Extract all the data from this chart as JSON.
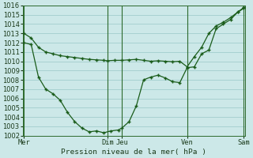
{
  "xlabel": "Pression niveau de la mer( hPa )",
  "ylim": [
    1002,
    1016
  ],
  "background_color": "#cce8e8",
  "grid_color": "#99c8c8",
  "line_color": "#1a5c1a",
  "vline_color": "#2d6a2d",
  "xlim": [
    0,
    9.2
  ],
  "vline_positions": [
    0.05,
    3.5,
    4.1,
    6.8,
    9.15
  ],
  "xtick_positions": [
    0.05,
    3.5,
    4.1,
    6.8,
    9.15
  ],
  "xtick_labels": [
    "Mer",
    "Dim",
    "Jeu",
    "Ven",
    "Sam"
  ],
  "series1_x": [
    0.05,
    0.35,
    0.65,
    0.95,
    1.25,
    1.55,
    1.85,
    2.15,
    2.45,
    2.75,
    3.05,
    3.35,
    3.5,
    3.8,
    4.1,
    4.4,
    4.7,
    5.0,
    5.3,
    5.6,
    5.9,
    6.2,
    6.5,
    6.8,
    7.1,
    7.4,
    7.7,
    8.0,
    8.3,
    8.6,
    8.9,
    9.15
  ],
  "series1_y": [
    1013.0,
    1012.5,
    1011.5,
    1011.0,
    1010.8,
    1010.6,
    1010.5,
    1010.4,
    1010.3,
    1010.2,
    1010.15,
    1010.1,
    1010.05,
    1010.1,
    1010.1,
    1010.15,
    1010.2,
    1010.1,
    1010.0,
    1010.05,
    1010.0,
    1009.95,
    1010.0,
    1009.4,
    1010.5,
    1011.5,
    1013.0,
    1013.8,
    1014.2,
    1014.7,
    1015.3,
    1015.8
  ],
  "series2_x": [
    0.05,
    0.35,
    0.65,
    0.95,
    1.25,
    1.55,
    1.85,
    2.15,
    2.45,
    2.75,
    3.05,
    3.35,
    3.65,
    3.95,
    4.1,
    4.4,
    4.7,
    5.0,
    5.3,
    5.6,
    5.9,
    6.2,
    6.5,
    6.8,
    7.1,
    7.4,
    7.7,
    8.0,
    8.3,
    8.6,
    8.9,
    9.15
  ],
  "series2_y": [
    1012.0,
    1011.8,
    1008.3,
    1007.0,
    1006.5,
    1005.8,
    1004.5,
    1003.5,
    1002.8,
    1002.4,
    1002.5,
    1002.3,
    1002.5,
    1002.6,
    1002.8,
    1003.5,
    1005.2,
    1008.0,
    1008.3,
    1008.5,
    1008.2,
    1007.8,
    1007.7,
    1009.3,
    1009.4,
    1010.8,
    1011.2,
    1013.5,
    1014.0,
    1014.5,
    1015.3,
    1015.7
  ]
}
